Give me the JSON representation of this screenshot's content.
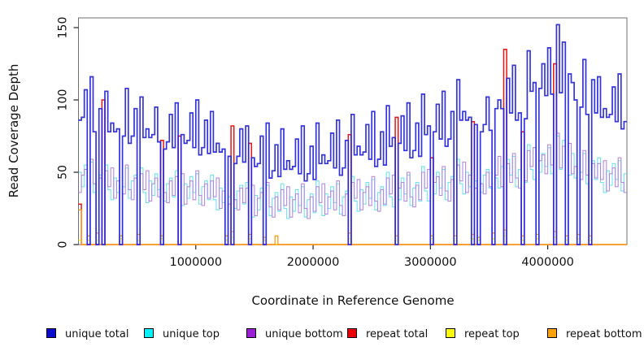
{
  "window": {
    "background": "#ffffff"
  },
  "chart_data": {
    "type": "line",
    "subtype": "step-coverage",
    "title": "",
    "xlabel": "Coordinate in Reference Genome",
    "ylabel": "Read Coverage Depth",
    "xlim": [
      0,
      4675000
    ],
    "ylim": [
      0,
      156
    ],
    "grid": false,
    "legend_position": "bottom",
    "bin_size_bp": 25000,
    "n_bins": 187,
    "x_ticks": [
      1000000,
      2000000,
      3000000,
      4000000
    ],
    "x_tick_labels": [
      "1000000",
      "2000000",
      "3000000",
      "4000000"
    ],
    "y_ticks": [
      0,
      50,
      100,
      150
    ],
    "y_tick_labels": [
      "0",
      "50",
      "100",
      "150"
    ],
    "series": [
      {
        "name": "repeat total",
        "line_color": "#E81414",
        "width": 1.5,
        "encoding": "sparse",
        "baseline": 0,
        "spikes": {
          "0": 28,
          "8": 100,
          "28": 72,
          "34": 75,
          "52": 82,
          "58": 70,
          "92": 76,
          "108": 88,
          "120": 60,
          "134": 85,
          "145": 135,
          "151": 78,
          "162": 125
        }
      },
      {
        "name": "repeat top",
        "line_color": "#F7F700",
        "width": 1.2,
        "encoding": "sparse",
        "baseline": 0,
        "spikes": {
          "0": 3,
          "3": 3,
          "6": 3,
          "14": 4,
          "20": 3,
          "28": 4,
          "50": 3,
          "52": 5,
          "58": 4,
          "63": 3,
          "92": 4,
          "108": 3,
          "120": 4,
          "128": 3,
          "134": 4,
          "136": 3,
          "141": 4,
          "145": 6,
          "151": 3,
          "156": 4,
          "162": 5,
          "166": 3,
          "170": 4,
          "174": 3
        }
      },
      {
        "name": "repeat bottom",
        "line_color": "#FF9E15",
        "width": 1.3,
        "encoding": "sparse",
        "baseline": 0,
        "spikes": {
          "0": 24,
          "3": 6,
          "6": 8,
          "14": 6,
          "20": 7,
          "28": 6,
          "50": 6,
          "52": 9,
          "58": 7,
          "63": 5,
          "67": 6,
          "92": 8,
          "108": 6,
          "120": 6,
          "128": 6,
          "134": 7,
          "136": 5,
          "141": 8,
          "145": 10,
          "151": 6,
          "156": 7,
          "162": 9,
          "166": 6,
          "170": 7,
          "174": 6
        }
      },
      {
        "name": "unique top",
        "line_color": "#5FE0EF",
        "width": 1.1,
        "opacity": 0.9,
        "encoding": "full",
        "values": [
          50,
          40,
          55,
          0,
          57,
          36,
          0,
          48,
          0,
          55,
          38,
          31,
          46,
          36,
          0,
          40,
          53,
          32,
          44,
          48,
          0,
          53,
          36,
          29,
          44,
          34,
          49,
          38,
          0,
          30,
          42,
          46,
          33,
          51,
          0,
          27,
          42,
          32,
          47,
          36,
          49,
          28,
          40,
          44,
          31,
          48,
          31,
          24,
          39,
          29,
          0,
          33,
          0,
          25,
          37,
          41,
          28,
          43,
          0,
          19,
          34,
          24,
          39,
          0,
          41,
          20,
          32,
          36,
          23,
          42,
          25,
          18,
          33,
          23,
          38,
          27,
          40,
          19,
          31,
          35,
          22,
          44,
          27,
          20,
          35,
          25,
          40,
          29,
          42,
          21,
          33,
          37,
          0,
          47,
          30,
          23,
          38,
          28,
          43,
          32,
          45,
          24,
          36,
          40,
          27,
          50,
          33,
          26,
          0,
          31,
          46,
          35,
          48,
          27,
          39,
          43,
          30,
          54,
          37,
          30,
          0,
          35,
          50,
          39,
          52,
          31,
          43,
          47,
          0,
          59,
          42,
          35,
          50,
          40,
          0,
          44,
          0,
          36,
          48,
          52,
          39,
          0,
          46,
          39,
          54,
          0,
          59,
          48,
          61,
          40,
          52,
          0,
          43,
          69,
          52,
          45,
          0,
          50,
          63,
          54,
          67,
          49,
          0,
          75,
          52,
          72,
          0,
          48,
          63,
          46,
          0,
          50,
          63,
          42,
          0,
          58,
          45,
          60,
          43,
          36,
          51,
          41,
          56,
          45,
          58,
          37,
          49
        ]
      },
      {
        "name": "unique bottom",
        "line_color": "#AE7EE3",
        "width": 1.1,
        "opacity": 0.9,
        "encoding": "full",
        "values": [
          36,
          48,
          52,
          0,
          59,
          42,
          0,
          46,
          0,
          51,
          40,
          53,
          32,
          44,
          0,
          35,
          55,
          38,
          31,
          46,
          0,
          49,
          38,
          51,
          30,
          42,
          46,
          33,
          0,
          36,
          29,
          44,
          34,
          47,
          0,
          49,
          28,
          40,
          44,
          31,
          51,
          34,
          27,
          42,
          32,
          44,
          33,
          46,
          25,
          37,
          0,
          28,
          0,
          31,
          24,
          39,
          29,
          39,
          0,
          41,
          20,
          32,
          36,
          0,
          43,
          26,
          19,
          33,
          24,
          38,
          27,
          40,
          19,
          31,
          35,
          22,
          42,
          25,
          18,
          33,
          23,
          40,
          29,
          42,
          21,
          33,
          37,
          24,
          44,
          27,
          20,
          35,
          0,
          43,
          32,
          45,
          24,
          36,
          40,
          27,
          47,
          30,
          23,
          38,
          28,
          46,
          35,
          48,
          0,
          39,
          43,
          30,
          50,
          33,
          26,
          41,
          31,
          50,
          39,
          52,
          0,
          43,
          47,
          34,
          54,
          37,
          30,
          45,
          0,
          55,
          44,
          57,
          36,
          48,
          0,
          39,
          0,
          42,
          35,
          50,
          40,
          0,
          48,
          61,
          40,
          0,
          56,
          43,
          63,
          46,
          39,
          0,
          44,
          65,
          54,
          67,
          0,
          58,
          62,
          49,
          69,
          55,
          0,
          77,
          53,
          68,
          0,
          70,
          49,
          54,
          0,
          45,
          65,
          48,
          0,
          56,
          46,
          56,
          45,
          58,
          37,
          49,
          53,
          40,
          60,
          43,
          36
        ]
      },
      {
        "name": "unique total",
        "line_color": "#2222DD",
        "width": 1.7,
        "opacity": 0.92,
        "encoding": "full",
        "values": [
          86,
          88,
          107,
          0,
          116,
          78,
          0,
          94,
          0,
          106,
          78,
          84,
          78,
          80,
          0,
          75,
          108,
          70,
          75,
          94,
          0,
          102,
          74,
          80,
          74,
          76,
          95,
          71,
          0,
          66,
          71,
          90,
          67,
          98,
          0,
          76,
          70,
          72,
          91,
          67,
          100,
          62,
          67,
          86,
          63,
          92,
          64,
          70,
          64,
          66,
          0,
          61,
          0,
          56,
          61,
          80,
          57,
          82,
          0,
          60,
          54,
          56,
          75,
          0,
          84,
          46,
          51,
          69,
          47,
          80,
          52,
          58,
          52,
          54,
          73,
          49,
          82,
          44,
          49,
          68,
          45,
          84,
          56,
          62,
          56,
          58,
          77,
          53,
          86,
          48,
          53,
          72,
          0,
          90,
          62,
          68,
          62,
          64,
          83,
          59,
          92,
          54,
          59,
          78,
          55,
          96,
          68,
          74,
          0,
          70,
          89,
          65,
          98,
          60,
          65,
          84,
          61,
          104,
          76,
          82,
          0,
          78,
          97,
          73,
          106,
          68,
          73,
          92,
          0,
          114,
          86,
          92,
          86,
          88,
          0,
          83,
          0,
          78,
          83,
          102,
          79,
          0,
          94,
          100,
          94,
          0,
          115,
          91,
          124,
          86,
          91,
          0,
          87,
          134,
          106,
          112,
          0,
          108,
          125,
          103,
          136,
          104,
          0,
          152,
          105,
          140,
          0,
          118,
          112,
          100,
          0,
          95,
          128,
          90,
          0,
          114,
          91,
          116,
          88,
          94,
          88,
          90,
          109,
          85,
          118,
          80,
          85
        ]
      }
    ]
  },
  "legend": {
    "items": [
      {
        "label": "unique total",
        "color": "#0C0CCE"
      },
      {
        "label": "unique top",
        "color": "#00F2FF"
      },
      {
        "label": "unique bottom",
        "color": "#9C1FD6"
      },
      {
        "label": "repeat total",
        "color": "#EA0000"
      },
      {
        "label": "repeat top",
        "color": "#FFFF00"
      },
      {
        "label": "repeat bottom",
        "color": "#FFA207"
      }
    ]
  }
}
